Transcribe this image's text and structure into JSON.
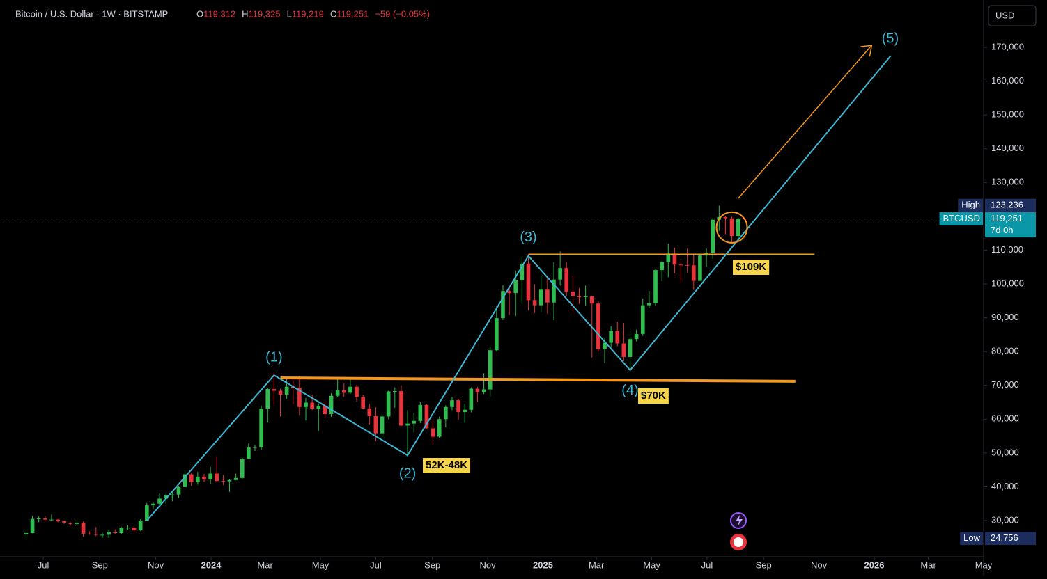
{
  "chart_data": {
    "type": "candlestick",
    "header": {
      "symbol": "Bitcoin / U.S. Dollar · 1W · BITSTAMP",
      "o_key": "O",
      "o": "119,312",
      "h_key": "H",
      "h": "119,325",
      "l_key": "L",
      "l": "119,219",
      "c_key": "C",
      "c": "119,251",
      "change": "−59 (−0.05%)"
    },
    "currency_button": "USD",
    "up_color": "#2ebd4e",
    "down_color": "#e8323c",
    "open": [
      25900,
      26300,
      30500,
      30600,
      30300,
      30300,
      29800,
      29300,
      29000,
      29300,
      26100,
      26000,
      25800,
      25800,
      26500,
      26300,
      27900,
      27900,
      27100,
      30000,
      34500,
      35000,
      36500,
      37400,
      37700,
      39900,
      43700,
      41400,
      43000,
      42200,
      43900,
      41700,
      41600,
      42000,
      42600,
      48300,
      51600,
      51700,
      63100,
      68900,
      68400,
      67200,
      69600,
      69300,
      63600,
      64900,
      63100,
      63900,
      61500,
      66900,
      68500,
      67800,
      69600,
      66600,
      63200,
      60900,
      55800,
      60800,
      68200,
      68300,
      58100,
      58700,
      59500,
      64200,
      57300,
      54800,
      60000,
      63600,
      65600,
      62100,
      62800,
      69000,
      68000,
      68800,
      80400,
      89900,
      97900,
      97300,
      101100,
      106000,
      95200,
      93700,
      98300,
      94500,
      101300,
      104700,
      97700,
      96500,
      96100,
      96300,
      94200,
      80700,
      82600,
      86100,
      82400,
      78400,
      83700,
      85200,
      93700,
      94300,
      104100,
      106500,
      109000,
      105700,
      105600,
      105500,
      100900,
      108400,
      109200,
      119000,
      119800,
      119400,
      114200,
      119312
    ],
    "high": [
      26800,
      31400,
      31300,
      31400,
      31800,
      30400,
      30000,
      29500,
      30200,
      29700,
      26800,
      28100,
      26400,
      27400,
      27400,
      28100,
      28600,
      28000,
      30400,
      35200,
      35300,
      38000,
      37900,
      38400,
      40200,
      44700,
      44000,
      44400,
      43800,
      45900,
      49000,
      43500,
      42200,
      43900,
      48500,
      52800,
      52400,
      64000,
      69200,
      73800,
      68900,
      71800,
      71300,
      72800,
      66300,
      67200,
      64700,
      65500,
      67700,
      71900,
      70600,
      71900,
      70200,
      67200,
      64500,
      63600,
      61500,
      68400,
      69400,
      70000,
      62700,
      61800,
      65000,
      64500,
      59800,
      60700,
      64100,
      66500,
      66000,
      64500,
      69400,
      69500,
      73600,
      81500,
      93400,
      99600,
      98900,
      104000,
      107800,
      108300,
      99900,
      102700,
      102200,
      106400,
      109600,
      106500,
      102500,
      98800,
      99500,
      96500,
      95000,
      84000,
      87500,
      88800,
      88500,
      86000,
      86500,
      95700,
      97900,
      104300,
      106700,
      111900,
      110700,
      106800,
      110500,
      108900,
      108500,
      110500,
      119500,
      123200,
      120200,
      119900,
      119600,
      119325
    ],
    "low": [
      24800,
      26200,
      29500,
      29700,
      30000,
      29500,
      29000,
      28600,
      28700,
      25200,
      25800,
      25400,
      24900,
      24900,
      26000,
      26000,
      27200,
      26500,
      26900,
      29900,
      33400,
      34500,
      35000,
      35700,
      36700,
      39900,
      40200,
      40600,
      41500,
      40800,
      41500,
      40500,
      38500,
      41900,
      42300,
      48300,
      50600,
      50900,
      59000,
      64500,
      60800,
      66000,
      64500,
      61000,
      59600,
      62700,
      56500,
      60200,
      60700,
      66600,
      66600,
      67500,
      65100,
      63100,
      58400,
      53500,
      54300,
      60000,
      63400,
      58000,
      49000,
      56100,
      58800,
      57200,
      52600,
      54500,
      57600,
      62700,
      59800,
      58900,
      62000,
      65100,
      67500,
      66800,
      80000,
      89300,
      90800,
      90500,
      94100,
      92200,
      91400,
      91700,
      91200,
      89300,
      99500,
      96400,
      91200,
      94100,
      93400,
      78200,
      80000,
      76600,
      81100,
      81600,
      77100,
      74400,
      83000,
      84600,
      92800,
      93400,
      100800,
      102000,
      103100,
      100400,
      103400,
      98200,
      100900,
      105100,
      107500,
      115700,
      114700,
      111900,
      112600,
      119219
    ],
    "close": [
      26300,
      30500,
      30600,
      30300,
      30300,
      29800,
      29300,
      29000,
      29300,
      26100,
      26000,
      25800,
      25800,
      26500,
      26300,
      27900,
      27900,
      27100,
      30000,
      34500,
      35000,
      36500,
      37400,
      37700,
      39900,
      43700,
      41400,
      43000,
      42200,
      43900,
      41700,
      41600,
      42000,
      42600,
      48300,
      51600,
      51700,
      63100,
      68900,
      68400,
      67200,
      69600,
      69300,
      63600,
      64900,
      63100,
      63900,
      61500,
      66900,
      68500,
      67800,
      69600,
      66600,
      63200,
      60900,
      55800,
      60800,
      68200,
      68300,
      58100,
      58700,
      59500,
      64200,
      57300,
      54800,
      60000,
      63600,
      65600,
      62100,
      62800,
      69000,
      68000,
      68800,
      80400,
      89900,
      97900,
      97300,
      101100,
      106000,
      95200,
      93700,
      98300,
      94500,
      101300,
      104700,
      97700,
      96500,
      96100,
      96300,
      94200,
      80700,
      82600,
      86100,
      82400,
      78400,
      83700,
      85200,
      93700,
      94300,
      104100,
      106500,
      109000,
      105700,
      105600,
      105500,
      100900,
      108400,
      109200,
      119000,
      119800,
      119400,
      114200,
      119300,
      119251
    ],
    "xlim": [
      -4.1,
      150.6
    ],
    "xticks": [
      {
        "value": 2.7,
        "label": "Jul"
      },
      {
        "value": 11.6,
        "label": "Sep"
      },
      {
        "value": 20.4,
        "label": "Nov"
      },
      {
        "value": 29.1,
        "label": "2024"
      },
      {
        "value": 37.6,
        "label": "Mar"
      },
      {
        "value": 46.3,
        "label": "May"
      },
      {
        "value": 55.0,
        "label": "Jul"
      },
      {
        "value": 63.9,
        "label": "Sep"
      },
      {
        "value": 72.6,
        "label": "Nov"
      },
      {
        "value": 81.3,
        "label": "2025"
      },
      {
        "value": 89.7,
        "label": "Mar"
      },
      {
        "value": 98.4,
        "label": "May"
      },
      {
        "value": 107.1,
        "label": "Jul"
      },
      {
        "value": 116.0,
        "label": "Sep"
      },
      {
        "value": 124.7,
        "label": "Nov"
      },
      {
        "value": 133.4,
        "label": "2026"
      },
      {
        "value": 141.9,
        "label": "Mar"
      },
      {
        "value": 150.6,
        "label": "May"
      }
    ],
    "ylim": [
      19300,
      184000
    ],
    "yticks": [
      {
        "value": 30000,
        "label": "30,000"
      },
      {
        "value": 40000,
        "label": "40,000"
      },
      {
        "value": 50000,
        "label": "50,000"
      },
      {
        "value": 60000,
        "label": "60,000"
      },
      {
        "value": 70000,
        "label": "70,000"
      },
      {
        "value": 80000,
        "label": "80,000"
      },
      {
        "value": 90000,
        "label": "90,000"
      },
      {
        "value": 100000,
        "label": "100,000"
      },
      {
        "value": 110000,
        "label": "110,000"
      },
      {
        "value": 130000,
        "label": "130,000"
      },
      {
        "value": 140000,
        "label": "140,000"
      },
      {
        "value": 150000,
        "label": "150,000"
      },
      {
        "value": 160000,
        "label": "160,000"
      },
      {
        "value": 170000,
        "label": "170,000"
      }
    ],
    "price_tags": [
      {
        "name": "High",
        "value": 123236,
        "label": "123,236",
        "color": "#1c2c5c"
      },
      {
        "name": "BTCUSD",
        "value": 119251,
        "label": "119,251",
        "extra": "7d 0h",
        "color": "#0a97a8"
      },
      {
        "name": "Low",
        "value": 24756,
        "label": "24,756",
        "color": "#1c2c5c"
      }
    ],
    "wave": {
      "color": "#3fb7d4",
      "x": [
        19,
        39,
        60,
        79,
        95,
        136
      ],
      "y": [
        30000,
        73000,
        49300,
        108300,
        74500,
        167500
      ],
      "labels": [
        "(1)",
        "(2)",
        "(3)",
        "(4)",
        "(5)"
      ]
    },
    "levels": [
      {
        "color": "#f5961e",
        "x": [
          40,
          121
        ],
        "y": [
          72200,
          71200
        ],
        "width": 4
      },
      {
        "color": "#f5961e",
        "x": [
          79,
          124
        ],
        "y": [
          108800,
          108800
        ],
        "width": 1.5
      }
    ],
    "arrow": {
      "color": "#f5961e",
      "x": [
        112,
        133
      ],
      "y": [
        125300,
        170600
      ]
    },
    "circle": {
      "color": "#f5961e",
      "x": 111,
      "y": 116700
    },
    "price_notes": [
      "52K-48K",
      "$109K",
      "$70K"
    ]
  }
}
